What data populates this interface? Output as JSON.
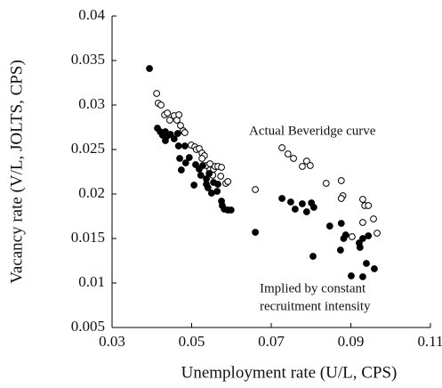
{
  "chart_data": {
    "type": "scatter",
    "x_label": "Unemployment rate (U/L, CPS)",
    "y_label": "Vacancy rate (V/L, JOLTS, CPS)",
    "xlim": [
      0.03,
      0.11
    ],
    "xticks": [
      0.03,
      0.05,
      0.07,
      0.09,
      0.11
    ],
    "ylim": [
      0.005,
      0.04
    ],
    "yticks": [
      0.005,
      0.01,
      0.015,
      0.02,
      0.025,
      0.03,
      0.035,
      0.04
    ],
    "annotations": [
      {
        "lines": [
          "Actual Beveridge curve"
        ]
      },
      {
        "lines": [
          "Implied by constant",
          "recruitment intensity"
        ]
      }
    ],
    "series": [
      {
        "marker": "open",
        "color": "#000000",
        "x": [
          0.0412,
          0.0416,
          0.0423,
          0.0432,
          0.0439,
          0.0445,
          0.0456,
          0.0463,
          0.0468,
          0.0472,
          0.0479,
          0.0483,
          0.0499,
          0.0508,
          0.0512,
          0.0519,
          0.0526,
          0.0532,
          0.0526,
          0.0537,
          0.0546,
          0.0546,
          0.0555,
          0.0559,
          0.0566,
          0.0575,
          0.0553,
          0.0573,
          0.0586,
          0.0591,
          0.066,
          0.0727,
          0.0742,
          0.0756,
          0.0778,
          0.0789,
          0.0798,
          0.0838,
          0.0876,
          0.088,
          0.0876,
          0.0903,
          0.093,
          0.093,
          0.0935,
          0.0944,
          0.0957,
          0.0966
        ],
        "values": [
          0.0313,
          0.0302,
          0.03,
          0.0289,
          0.0291,
          0.0283,
          0.0288,
          0.0283,
          0.0289,
          0.0277,
          0.0271,
          0.0269,
          0.0255,
          0.0253,
          0.025,
          0.0251,
          0.0246,
          0.0243,
          0.024,
          0.0232,
          0.0234,
          0.0227,
          0.0228,
          0.0231,
          0.0231,
          0.023,
          0.0221,
          0.022,
          0.0212,
          0.0214,
          0.0205,
          0.0252,
          0.0245,
          0.024,
          0.0231,
          0.0237,
          0.0232,
          0.0212,
          0.0215,
          0.0198,
          0.0195,
          0.0152,
          0.0168,
          0.0194,
          0.0187,
          0.0187,
          0.0172,
          0.0156
        ]
      },
      {
        "marker": "filled",
        "color": "#000000",
        "x": [
          0.0394,
          0.0414,
          0.0421,
          0.0427,
          0.0434,
          0.0438,
          0.0434,
          0.0447,
          0.0456,
          0.0465,
          0.0467,
          0.0483,
          0.047,
          0.0485,
          0.0494,
          0.051,
          0.0519,
          0.0528,
          0.0523,
          0.0506,
          0.0537,
          0.0544,
          0.0555,
          0.0566,
          0.0541,
          0.0537,
          0.0474,
          0.0564,
          0.0575,
          0.0577,
          0.055,
          0.0582,
          0.0591,
          0.0599,
          0.066,
          0.0727,
          0.0749,
          0.076,
          0.0778,
          0.0789,
          0.0801,
          0.0807,
          0.0805,
          0.0847,
          0.0874,
          0.0876,
          0.0882,
          0.0887,
          0.0901,
          0.0921,
          0.093,
          0.0923,
          0.093,
          0.0939,
          0.0944,
          0.0959
        ],
        "values": [
          0.0341,
          0.0274,
          0.027,
          0.0266,
          0.027,
          0.0265,
          0.026,
          0.0267,
          0.0262,
          0.0268,
          0.0254,
          0.0254,
          0.024,
          0.0235,
          0.0241,
          0.0233,
          0.0228,
          0.0232,
          0.0221,
          0.021,
          0.0217,
          0.0223,
          0.0213,
          0.0211,
          0.0207,
          0.0211,
          0.0227,
          0.0203,
          0.0192,
          0.0187,
          0.0201,
          0.0183,
          0.0182,
          0.0182,
          0.0157,
          0.0195,
          0.0191,
          0.0183,
          0.0189,
          0.018,
          0.019,
          0.0185,
          0.013,
          0.0164,
          0.0137,
          0.0167,
          0.015,
          0.0154,
          0.0108,
          0.0145,
          0.015,
          0.014,
          0.0107,
          0.0122,
          0.0153,
          0.0116
        ]
      }
    ]
  }
}
